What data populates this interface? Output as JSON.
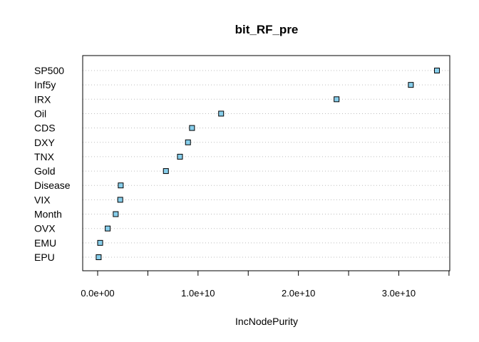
{
  "chart_data": {
    "type": "scatter",
    "subtype": "dotchart",
    "title": "bit_RF_pre",
    "xlabel": "IncNodePurity",
    "ylabel": "",
    "xlim": [
      -1500000000.0,
      35200000000.0
    ],
    "grid": "dotted horizontal",
    "marker": {
      "shape": "square",
      "fill": "#87CEEB",
      "stroke": "#000000"
    },
    "x_ticks": [
      0,
      5000000000.0,
      10000000000.0,
      15000000000.0,
      20000000000.0,
      25000000000.0,
      30000000000.0,
      35000000000.0
    ],
    "x_tick_labels": [
      {
        "value": 0,
        "label": "0.0e+00"
      },
      {
        "value": 10000000000.0,
        "label": "1.0e+10"
      },
      {
        "value": 20000000000.0,
        "label": "2.0e+10"
      },
      {
        "value": 30000000000.0,
        "label": "3.0e+10"
      }
    ],
    "categories": [
      "SP500",
      "Inf5y",
      "IRX",
      "Oil",
      "CDS",
      "DXY",
      "TNX",
      "Gold",
      "Disease",
      "VIX",
      "Month",
      "OVX",
      "EMU",
      "EPU"
    ],
    "values": [
      33800000000.0,
      31200000000.0,
      23800000000.0,
      12300000000.0,
      9400000000.0,
      9000000000.0,
      8200000000.0,
      6800000000.0,
      2300000000.0,
      2250000000.0,
      1800000000.0,
      1000000000.0,
      250000000.0,
      100000000.0
    ]
  }
}
